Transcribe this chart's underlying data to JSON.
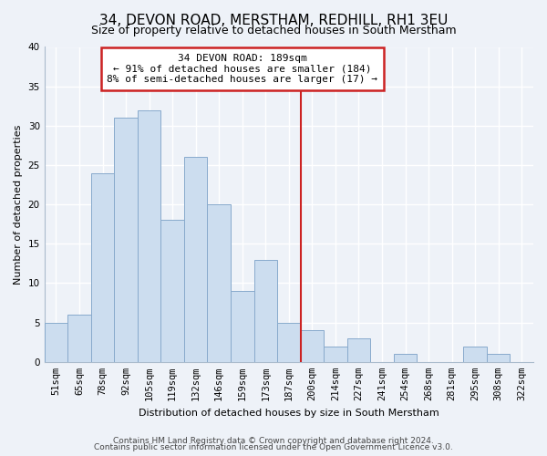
{
  "title": "34, DEVON ROAD, MERSTHAM, REDHILL, RH1 3EU",
  "subtitle": "Size of property relative to detached houses in South Merstham",
  "xlabel": "Distribution of detached houses by size in South Merstham",
  "ylabel": "Number of detached properties",
  "bin_labels": [
    "51sqm",
    "65sqm",
    "78sqm",
    "92sqm",
    "105sqm",
    "119sqm",
    "132sqm",
    "146sqm",
    "159sqm",
    "173sqm",
    "187sqm",
    "200sqm",
    "214sqm",
    "227sqm",
    "241sqm",
    "254sqm",
    "268sqm",
    "281sqm",
    "295sqm",
    "308sqm",
    "322sqm"
  ],
  "bar_heights": [
    5,
    6,
    24,
    31,
    32,
    18,
    26,
    20,
    9,
    13,
    5,
    4,
    2,
    3,
    0,
    1,
    0,
    0,
    2,
    1,
    0
  ],
  "bar_color": "#ccddef",
  "bar_edge_color": "#88aacc",
  "ylim": [
    0,
    40
  ],
  "yticks": [
    0,
    5,
    10,
    15,
    20,
    25,
    30,
    35,
    40
  ],
  "vline_x_index": 10,
  "annotation_title": "34 DEVON ROAD: 189sqm",
  "annotation_line1": "← 91% of detached houses are smaller (184)",
  "annotation_line2": "8% of semi-detached houses are larger (17) →",
  "annotation_box_facecolor": "#ffffff",
  "annotation_box_edgecolor": "#cc2222",
  "vline_color": "#cc2222",
  "background_color": "#eef2f8",
  "grid_color": "#ffffff",
  "spine_color": "#aabbcc",
  "title_fontsize": 11,
  "subtitle_fontsize": 9,
  "ylabel_fontsize": 8,
  "xlabel_fontsize": 8,
  "tick_fontsize": 7.5,
  "annotation_fontsize": 8,
  "footer_line1": "Contains HM Land Registry data © Crown copyright and database right 2024.",
  "footer_line2": "Contains public sector information licensed under the Open Government Licence v3.0.",
  "footer_fontsize": 6.5
}
